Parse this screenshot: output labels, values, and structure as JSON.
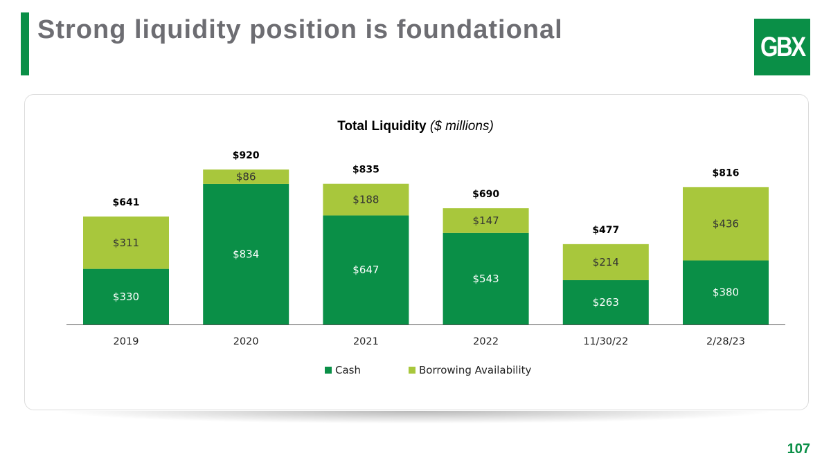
{
  "slide": {
    "title": "Strong liquidity position is foundational",
    "logo_text": "GBX",
    "page_number": "107"
  },
  "colors": {
    "accent": "#0a8f47",
    "cash": "#0a8f47",
    "borrowing": "#a8c73c",
    "title_gray": "#6d6d72"
  },
  "chart_data": {
    "type": "bar",
    "stacked": true,
    "title": "Total Liquidity",
    "title_unit": "($ millions)",
    "categories": [
      "2019",
      "2020",
      "2021",
      "2022",
      "11/30/22",
      "2/28/23"
    ],
    "series": [
      {
        "name": "Cash",
        "values": [
          330,
          834,
          647,
          543,
          263,
          380
        ]
      },
      {
        "name": "Borrowing Availability",
        "values": [
          311,
          86,
          188,
          147,
          214,
          436
        ]
      }
    ],
    "segment_labels": [
      [
        "$330",
        "$834",
        "$647",
        "$543",
        "$263",
        "$380"
      ],
      [
        "$311",
        "$86",
        "$188",
        "$147",
        "$214",
        "$436"
      ]
    ],
    "totals": [
      641,
      920,
      835,
      690,
      477,
      816
    ],
    "total_labels": [
      "$641",
      "$920",
      "$835",
      "$690",
      "$477",
      "$816"
    ],
    "ylim": [
      0,
      920
    ],
    "grid": false,
    "legend_position": "bottom"
  }
}
